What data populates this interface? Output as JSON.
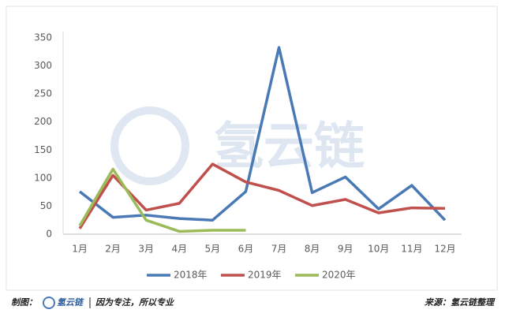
{
  "chart_data": {
    "type": "line",
    "categories": [
      "1月",
      "2月",
      "3月",
      "4月",
      "5月",
      "6月",
      "7月",
      "8月",
      "9月",
      "10月",
      "11月",
      "12月"
    ],
    "series": [
      {
        "name": "2018年",
        "color": "#4a7ab5",
        "values": [
          76,
          30,
          34,
          28,
          25,
          76,
          333,
          74,
          102,
          45,
          87,
          25
        ]
      },
      {
        "name": "2019年",
        "color": "#c0504d",
        "values": [
          10,
          105,
          43,
          55,
          125,
          93,
          78,
          51,
          62,
          38,
          47,
          46
        ]
      },
      {
        "name": "2020年",
        "color": "#9bbb59",
        "values": [
          15,
          116,
          25,
          5,
          7,
          7,
          null,
          null,
          null,
          null,
          null,
          null
        ]
      }
    ],
    "ylim": [
      0,
      350
    ],
    "yticks": [
      0,
      50,
      100,
      150,
      200,
      250,
      300,
      350
    ],
    "grid": false,
    "legend": "bottom",
    "watermark": "氢云链"
  },
  "footer": {
    "made_by": "制图：",
    "brand": "氢云链",
    "slogan": "因为专注，所以专业",
    "source": "来源：氢云链整理"
  }
}
